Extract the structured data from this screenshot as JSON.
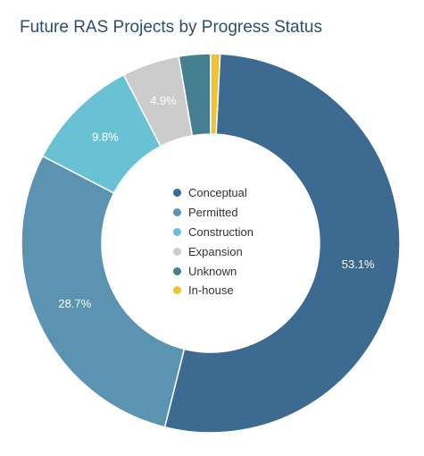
{
  "chart_data": {
    "type": "pie",
    "title": "Future RAS Projects by Progress Status",
    "legend_position": "center",
    "slices": [
      {
        "name": "Conceptual",
        "value": 53.1,
        "label": "53.1%",
        "color": "#3d6a91"
      },
      {
        "name": "Permitted",
        "value": 28.7,
        "label": "28.7%",
        "color": "#5b93b0"
      },
      {
        "name": "Construction",
        "value": 9.8,
        "label": "9.8%",
        "color": "#68c2d4"
      },
      {
        "name": "Expansion",
        "value": 4.9,
        "label": "4.9%",
        "color": "#cccccc"
      },
      {
        "name": "Unknown",
        "value": 2.7,
        "label": "",
        "color": "#44808f"
      },
      {
        "name": "In-house",
        "value": 0.8,
        "label": "",
        "color": "#f1c232"
      }
    ]
  }
}
